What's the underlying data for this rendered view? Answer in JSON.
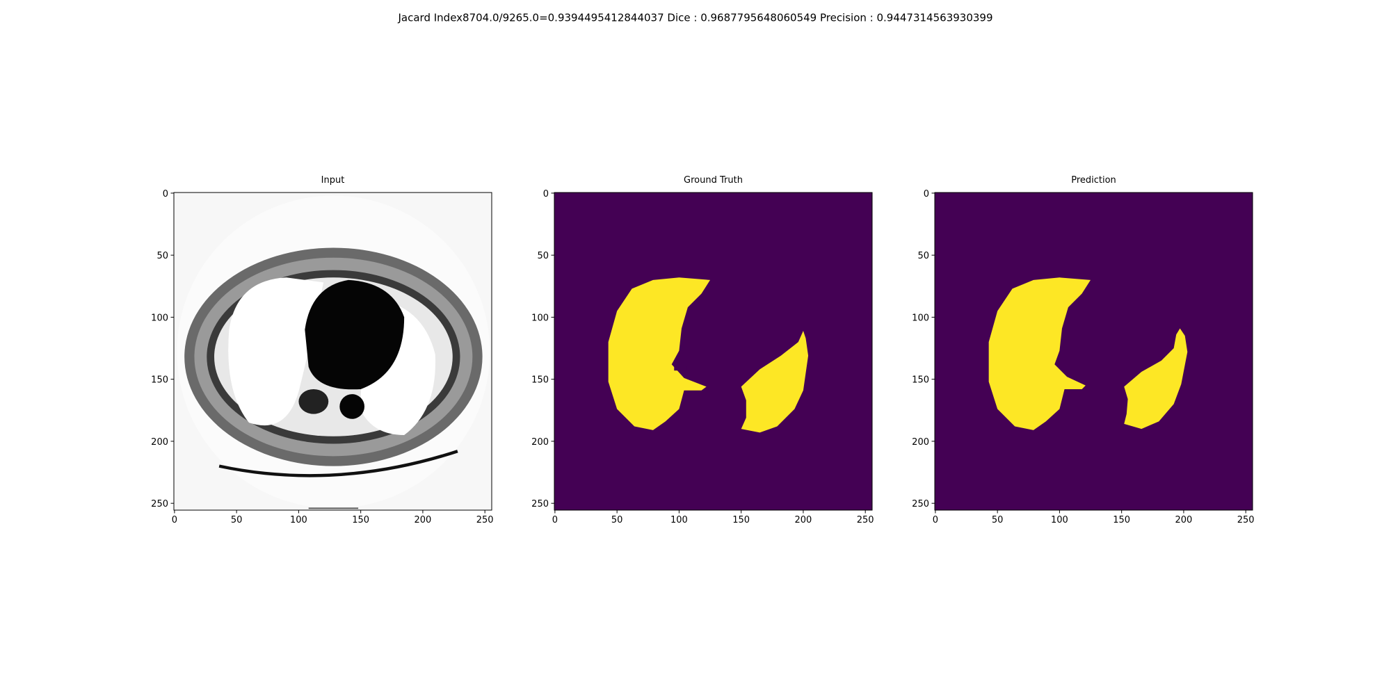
{
  "title": "Jacard Index8704.0/9265.0=0.9394495412844037 Dice : 0.9687795648060549 Precision : 0.9447314563930399",
  "chart_data": [
    {
      "type": "image",
      "title": "Input",
      "xlim": [
        -0.5,
        255.5
      ],
      "ylim": [
        255.5,
        -0.5
      ],
      "xticks": [
        0,
        50,
        100,
        150,
        200,
        250
      ],
      "yticks": [
        0,
        50,
        100,
        150,
        200,
        250
      ]
    },
    {
      "type": "image",
      "title": "Ground Truth",
      "xlim": [
        -0.5,
        255.5
      ],
      "ylim": [
        255.5,
        -0.5
      ],
      "xticks": [
        0,
        50,
        100,
        150,
        200,
        250
      ],
      "yticks": [
        0,
        50,
        100,
        150,
        200,
        250
      ]
    },
    {
      "type": "image",
      "title": "Prediction",
      "xlim": [
        -0.5,
        255.5
      ],
      "ylim": [
        255.5,
        -0.5
      ],
      "xticks": [
        0,
        50,
        100,
        150,
        200,
        250
      ],
      "yticks": [
        0,
        50,
        100,
        150,
        200,
        250
      ]
    }
  ]
}
